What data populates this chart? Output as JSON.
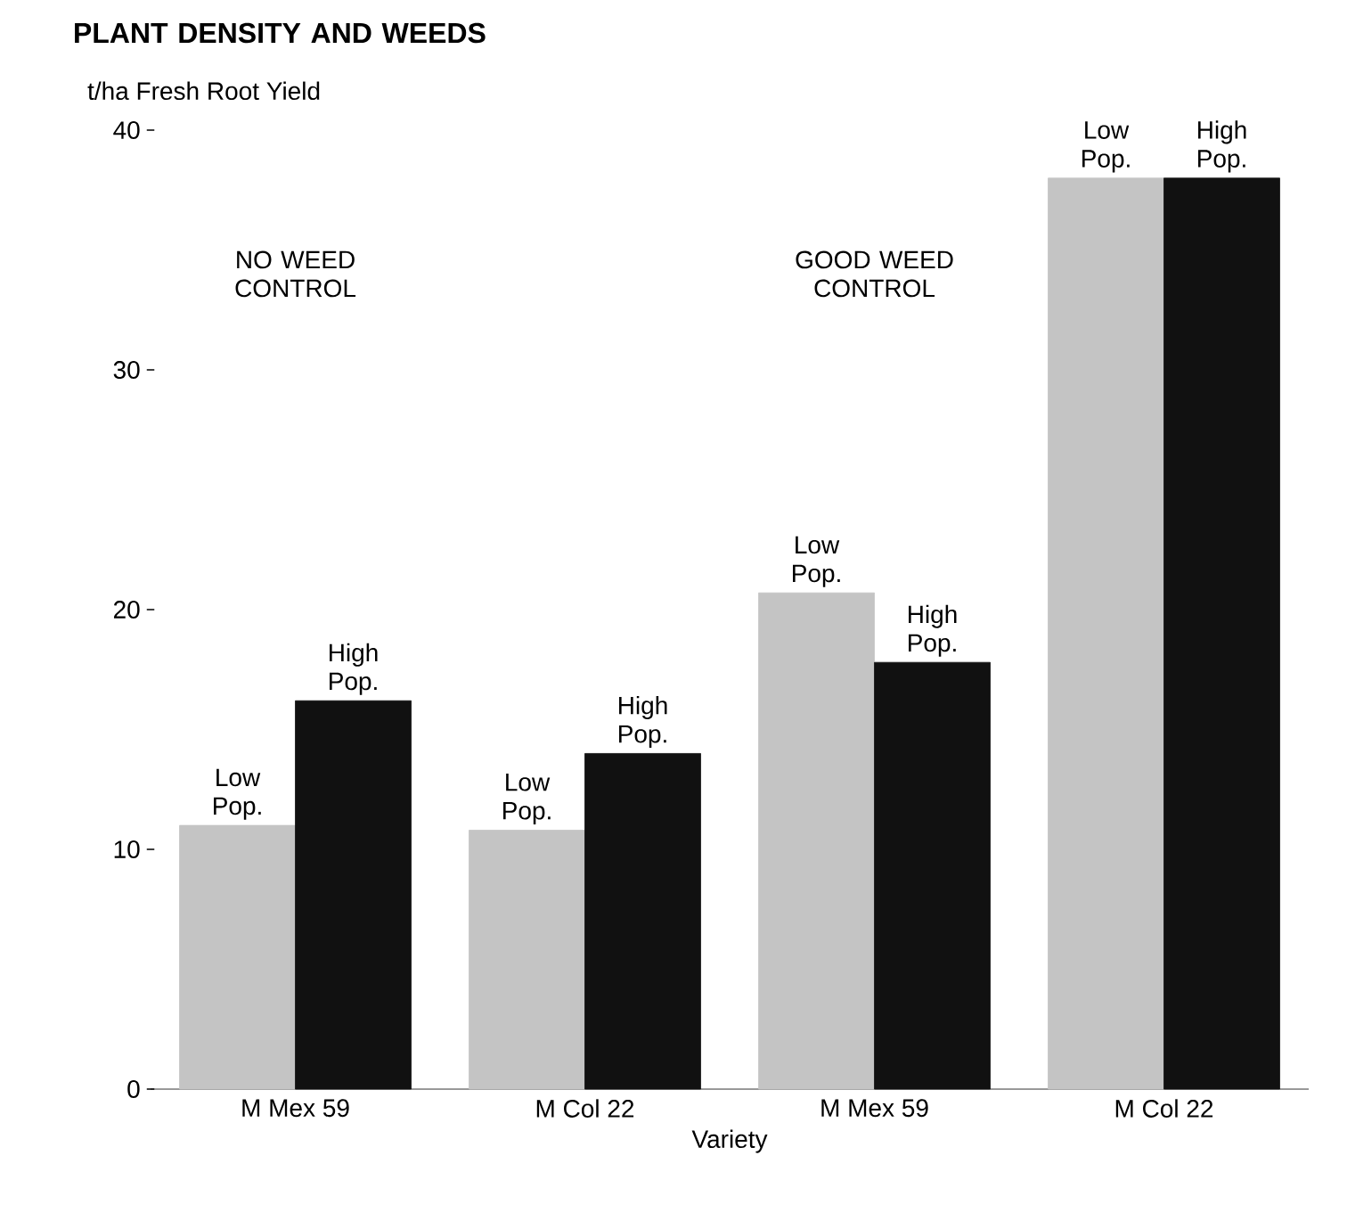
{
  "chart_data": {
    "type": "bar",
    "title": "PLANT DENSITY AND WEEDS",
    "ylabel": "t/ha Fresh Root Yield",
    "xlabel": "Variety",
    "categories": [
      "M Mex 59",
      "M Col 22",
      "M Mex 59",
      "M Col 22"
    ],
    "series": [
      {
        "name": "Low Pop.",
        "color": "#c4c4c4",
        "values": [
          11.0,
          10.8,
          20.7,
          38.0
        ]
      },
      {
        "name": "High Pop.",
        "color": "#111111",
        "values": [
          16.2,
          14.0,
          17.8,
          38.0
        ]
      }
    ],
    "annotations": [
      "NO WEED CONTROL",
      "GOOD WEED CONTROL"
    ],
    "ylim": [
      0,
      40
    ],
    "yticks": [
      0,
      10,
      20,
      30,
      40
    ]
  }
}
